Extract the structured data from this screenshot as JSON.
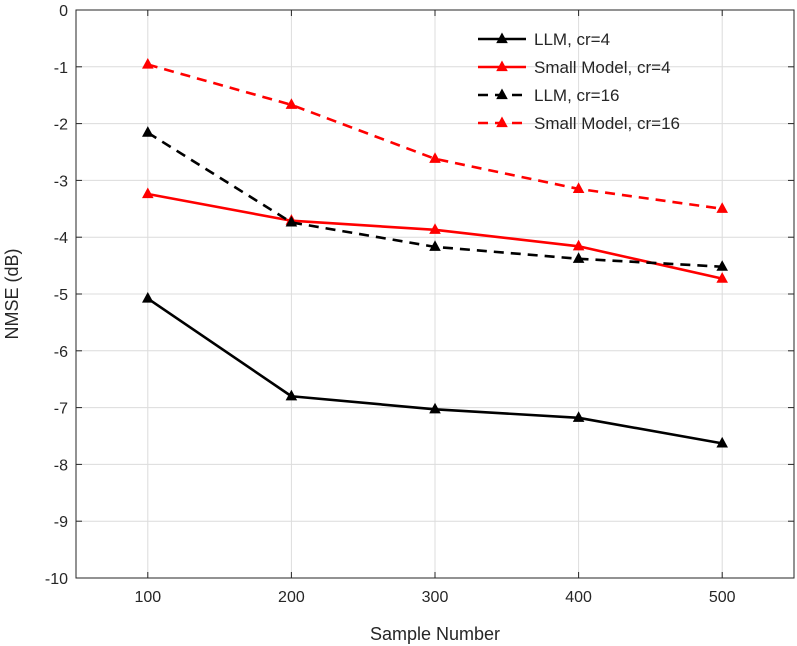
{
  "chart_data": {
    "type": "line",
    "title": "",
    "xlabel": "Sample Number",
    "ylabel": "NMSE (dB)",
    "x": [
      100,
      200,
      300,
      400,
      500
    ],
    "xlim": [
      50,
      550
    ],
    "ylim": [
      -10,
      0
    ],
    "xticks": [
      100,
      200,
      300,
      400,
      500
    ],
    "yticks": [
      0,
      -1,
      -2,
      -3,
      -4,
      -5,
      -6,
      -7,
      -8,
      -9,
      -10
    ],
    "grid": true,
    "legend_position": "top-right",
    "series": [
      {
        "name": "LLM, cr=4",
        "color": "#000000",
        "dash": "solid",
        "marker": "triangle-up",
        "values": [
          -5.08,
          -6.8,
          -7.03,
          -7.18,
          -7.63
        ]
      },
      {
        "name": "Small Model, cr=4",
        "color": "#ff0000",
        "dash": "solid",
        "marker": "triangle-up",
        "values": [
          -3.24,
          -3.71,
          -3.87,
          -4.16,
          -4.73
        ]
      },
      {
        "name": "LLM, cr=16",
        "color": "#000000",
        "dash": "dashed",
        "marker": "triangle-up",
        "values": [
          -2.16,
          -3.74,
          -4.17,
          -4.38,
          -4.52
        ]
      },
      {
        "name": "Small Model, cr=16",
        "color": "#ff0000",
        "dash": "dashed",
        "marker": "triangle-up",
        "values": [
          -0.96,
          -1.67,
          -2.62,
          -3.15,
          -3.5
        ]
      }
    ]
  }
}
